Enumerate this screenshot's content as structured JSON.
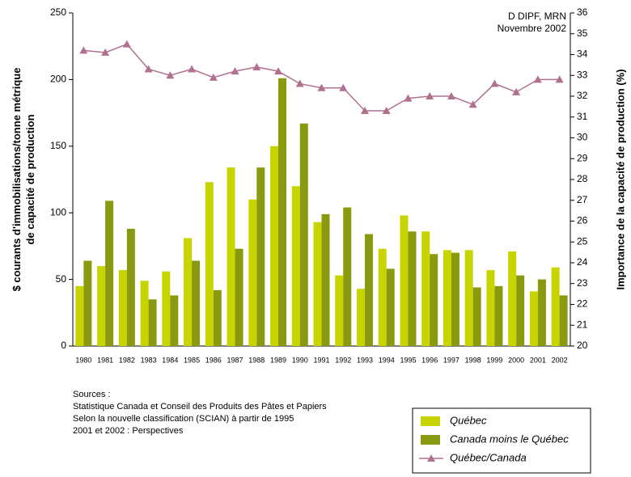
{
  "chart_data": {
    "type": "bar-line",
    "annotation": [
      "D DIPF, MRN",
      "Novembre 2002"
    ],
    "y_label": [
      "$ courants d'immobilisations/tonne métrique",
      "de capacité de production"
    ],
    "y2_label": "Importance de la capacité de production (%)",
    "notes": [
      "Sources :",
      "Statistique Canada et Conseil des Produits des Pâtes et Papiers",
      "Selon la nouvelle classification (SCIAN) à partir de 1995",
      "2001 et 2002 : Perspectives"
    ],
    "categories": [
      "1980",
      "1981",
      "1982",
      "1983",
      "1984",
      "1985",
      "1986",
      "1987",
      "1988",
      "1989",
      "1990",
      "1991",
      "1992",
      "1993",
      "1994",
      "1995",
      "1996",
      "1997",
      "1998",
      "1999",
      "2000",
      "2001",
      "2002"
    ],
    "series": [
      {
        "name": "Québec",
        "type": "bar",
        "color": "#c8d400",
        "values": [
          45,
          60,
          57,
          49,
          56,
          81,
          123,
          134,
          110,
          150,
          120,
          93,
          53,
          43,
          73,
          98,
          86,
          72,
          72,
          57,
          71,
          41,
          59
        ]
      },
      {
        "name": "Canada moins le Québec",
        "type": "bar",
        "color": "#8a9a10",
        "values": [
          64,
          109,
          88,
          35,
          38,
          64,
          42,
          73,
          134,
          201,
          167,
          99,
          104,
          84,
          58,
          86,
          69,
          70,
          44,
          45,
          53,
          50,
          38
        ]
      },
      {
        "name": "Québec/Canada",
        "type": "line",
        "axis": "y2",
        "color": "#b07090",
        "values": [
          34.2,
          34.1,
          34.5,
          33.3,
          33.0,
          33.3,
          32.9,
          33.2,
          33.4,
          33.2,
          32.6,
          32.4,
          32.4,
          31.3,
          31.3,
          31.9,
          32.0,
          32.0,
          31.6,
          32.6,
          32.2,
          32.8,
          32.8
        ]
      }
    ],
    "ylim": [
      0,
      250
    ],
    "yticks": [
      0,
      50,
      100,
      150,
      200,
      250
    ],
    "y2lim": [
      20,
      36
    ],
    "y2ticks": [
      20,
      21,
      22,
      23,
      24,
      25,
      26,
      27,
      28,
      29,
      30,
      31,
      32,
      33,
      34,
      35,
      36
    ],
    "grid": false
  }
}
